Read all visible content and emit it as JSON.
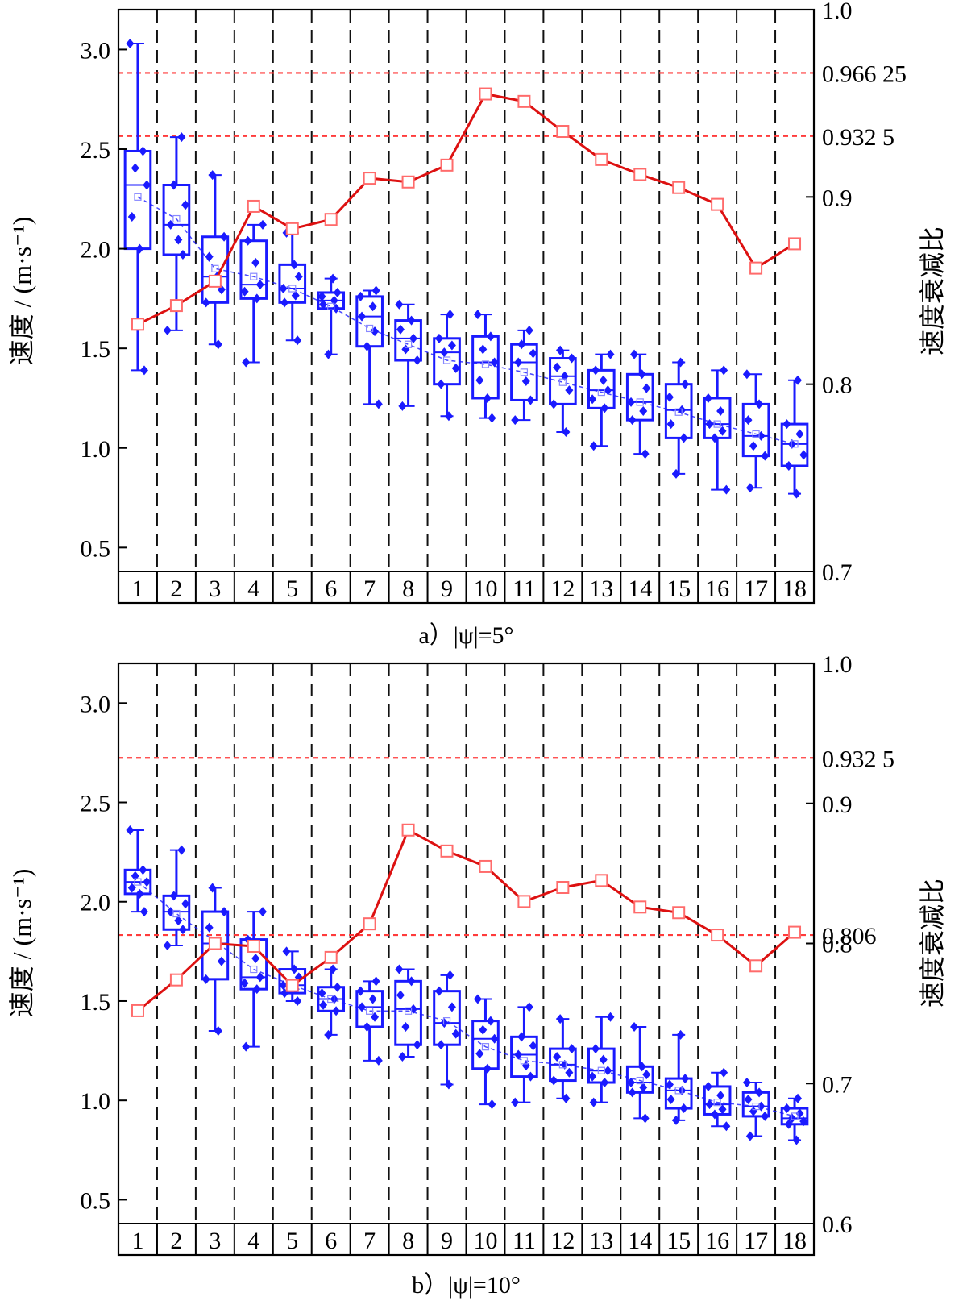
{
  "chart_data": [
    {
      "type": "box",
      "panel_label": "a）|ψ|=5°",
      "ylabel_left": "速度 / (m·s⁻¹)",
      "ylabel_right": "速度衰减比",
      "categories": [
        "1",
        "2",
        "3",
        "4",
        "5",
        "6",
        "7",
        "8",
        "9",
        "10",
        "11",
        "12",
        "13",
        "14",
        "15",
        "16",
        "17",
        "18"
      ],
      "left_ylim": [
        0.38,
        3.2
      ],
      "left_yticks": [
        0.5,
        1.0,
        1.5,
        2.0,
        2.5,
        3.0
      ],
      "left_ytick_labels": [
        "0.5",
        "1.0",
        "1.5",
        "2.0",
        "2.5",
        "3.0"
      ],
      "right_ylim": [
        0.7,
        1.0
      ],
      "right_yticks": [
        0.7,
        0.8,
        0.9,
        1.0
      ],
      "right_ytick_labels": [
        "0.7",
        "0.8",
        "0.9",
        "1.0"
      ],
      "ref_lines": [
        {
          "value": 0.96625,
          "label": "0.966 25"
        },
        {
          "value": 0.9325,
          "label": "0.932 5"
        }
      ],
      "boxes": [
        {
          "min": 1.39,
          "q1": 2.0,
          "median": 2.32,
          "q3": 2.49,
          "max": 3.03,
          "mean": 2.26
        },
        {
          "min": 1.59,
          "q1": 1.97,
          "median": 2.12,
          "q3": 2.32,
          "max": 2.56,
          "mean": 2.15
        },
        {
          "min": 1.52,
          "q1": 1.73,
          "median": 1.86,
          "q3": 2.06,
          "max": 2.37,
          "mean": 1.9
        },
        {
          "min": 1.43,
          "q1": 1.75,
          "median": 1.82,
          "q3": 2.04,
          "max": 2.12,
          "mean": 1.86
        },
        {
          "min": 1.54,
          "q1": 1.73,
          "median": 1.8,
          "q3": 1.92,
          "max": 2.08,
          "mean": 1.8
        },
        {
          "min": 1.47,
          "q1": 1.7,
          "median": 1.74,
          "q3": 1.78,
          "max": 1.85,
          "mean": 1.71
        },
        {
          "min": 1.22,
          "q1": 1.51,
          "median": 1.66,
          "q3": 1.76,
          "max": 1.79,
          "mean": 1.6
        },
        {
          "min": 1.21,
          "q1": 1.44,
          "median": 1.55,
          "q3": 1.64,
          "max": 1.72,
          "mean": 1.52
        },
        {
          "min": 1.16,
          "q1": 1.32,
          "median": 1.48,
          "q3": 1.55,
          "max": 1.67,
          "mean": 1.44
        },
        {
          "min": 1.15,
          "q1": 1.25,
          "median": 1.43,
          "q3": 1.56,
          "max": 1.67,
          "mean": 1.42
        },
        {
          "min": 1.14,
          "q1": 1.24,
          "median": 1.43,
          "q3": 1.52,
          "max": 1.59,
          "mean": 1.38
        },
        {
          "min": 1.08,
          "q1": 1.22,
          "median": 1.36,
          "q3": 1.45,
          "max": 1.49,
          "mean": 1.33
        },
        {
          "min": 1.01,
          "q1": 1.2,
          "median": 1.29,
          "q3": 1.39,
          "max": 1.47,
          "mean": 1.28
        },
        {
          "min": 0.97,
          "q1": 1.14,
          "median": 1.23,
          "q3": 1.37,
          "max": 1.47,
          "mean": 1.23
        },
        {
          "min": 0.87,
          "q1": 1.05,
          "median": 1.19,
          "q3": 1.32,
          "max": 1.43,
          "mean": 1.18
        },
        {
          "min": 0.79,
          "q1": 1.05,
          "median": 1.12,
          "q3": 1.25,
          "max": 1.39,
          "mean": 1.12
        },
        {
          "min": 0.8,
          "q1": 0.96,
          "median": 1.06,
          "q3": 1.22,
          "max": 1.37,
          "mean": 1.07
        },
        {
          "min": 0.77,
          "q1": 0.91,
          "median": 1.02,
          "q3": 1.12,
          "max": 1.34,
          "mean": 1.02
        }
      ],
      "ratio": [
        0.832,
        0.842,
        0.855,
        0.895,
        0.883,
        0.888,
        0.91,
        0.908,
        0.917,
        0.955,
        0.951,
        0.935,
        0.92,
        0.912,
        0.905,
        0.896,
        0.862,
        0.875
      ]
    },
    {
      "type": "box",
      "panel_label": "b）|ψ|=10°",
      "ylabel_left": "速度 / (m·s⁻¹)",
      "ylabel_right": "速度衰减比",
      "categories": [
        "1",
        "2",
        "3",
        "4",
        "5",
        "6",
        "7",
        "8",
        "9",
        "10",
        "11",
        "12",
        "13",
        "14",
        "15",
        "16",
        "17",
        "18"
      ],
      "left_ylim": [
        0.38,
        3.2
      ],
      "left_yticks": [
        0.5,
        1.0,
        1.5,
        2.0,
        2.5,
        3.0
      ],
      "left_ytick_labels": [
        "0.5",
        "1.0",
        "1.5",
        "2.0",
        "2.5",
        "3.0"
      ],
      "right_ylim": [
        0.6,
        1.0
      ],
      "right_yticks": [
        0.6,
        0.7,
        0.8,
        0.9,
        1.0
      ],
      "right_ytick_labels": [
        "0.6",
        "0.7",
        "0.8",
        "0.9",
        "1.0"
      ],
      "ref_lines": [
        {
          "value": 0.9325,
          "label": "0.932 5"
        },
        {
          "value": 0.806,
          "label": "0.806"
        }
      ],
      "boxes": [
        {
          "min": 1.95,
          "q1": 2.04,
          "median": 2.1,
          "q3": 2.16,
          "max": 2.36,
          "mean": 2.1
        },
        {
          "min": 1.78,
          "q1": 1.86,
          "median": 1.95,
          "q3": 2.03,
          "max": 2.26,
          "mean": 1.94
        },
        {
          "min": 1.35,
          "q1": 1.61,
          "median": 1.79,
          "q3": 1.95,
          "max": 2.07,
          "mean": 1.8
        },
        {
          "min": 1.27,
          "q1": 1.56,
          "median": 1.62,
          "q3": 1.81,
          "max": 1.95,
          "mean": 1.66
        },
        {
          "min": 1.5,
          "q1": 1.54,
          "median": 1.58,
          "q3": 1.66,
          "max": 1.75,
          "mean": 1.58
        },
        {
          "min": 1.33,
          "q1": 1.45,
          "median": 1.51,
          "q3": 1.57,
          "max": 1.66,
          "mean": 1.51
        },
        {
          "min": 1.2,
          "q1": 1.37,
          "median": 1.47,
          "q3": 1.55,
          "max": 1.6,
          "mean": 1.45
        },
        {
          "min": 1.22,
          "q1": 1.28,
          "median": 1.46,
          "q3": 1.6,
          "max": 1.66,
          "mean": 1.45
        },
        {
          "min": 1.08,
          "q1": 1.28,
          "median": 1.39,
          "q3": 1.55,
          "max": 1.63,
          "mean": 1.4
        },
        {
          "min": 0.98,
          "q1": 1.16,
          "median": 1.31,
          "q3": 1.4,
          "max": 1.51,
          "mean": 1.27
        },
        {
          "min": 0.99,
          "q1": 1.12,
          "median": 1.23,
          "q3": 1.32,
          "max": 1.47,
          "mean": 1.2
        },
        {
          "min": 1.01,
          "q1": 1.1,
          "median": 1.18,
          "q3": 1.26,
          "max": 1.41,
          "mean": 1.18
        },
        {
          "min": 0.99,
          "q1": 1.09,
          "median": 1.15,
          "q3": 1.26,
          "max": 1.42,
          "mean": 1.15
        },
        {
          "min": 0.91,
          "q1": 1.04,
          "median": 1.09,
          "q3": 1.17,
          "max": 1.37,
          "mean": 1.1
        },
        {
          "min": 0.9,
          "q1": 0.96,
          "median": 1.05,
          "q3": 1.11,
          "max": 1.33,
          "mean": 1.05
        },
        {
          "min": 0.87,
          "q1": 0.93,
          "median": 0.98,
          "q3": 1.07,
          "max": 1.14,
          "mean": 0.99
        },
        {
          "min": 0.82,
          "q1": 0.92,
          "median": 0.97,
          "q3": 1.04,
          "max": 1.09,
          "mean": 0.97
        },
        {
          "min": 0.8,
          "q1": 0.88,
          "median": 0.91,
          "q3": 0.96,
          "max": 1.01,
          "mean": 0.92
        }
      ],
      "ratio": [
        0.752,
        0.774,
        0.8,
        0.798,
        0.77,
        0.79,
        0.814,
        0.881,
        0.866,
        0.855,
        0.83,
        0.84,
        0.845,
        0.826,
        0.822,
        0.806,
        0.784,
        0.808
      ]
    }
  ]
}
